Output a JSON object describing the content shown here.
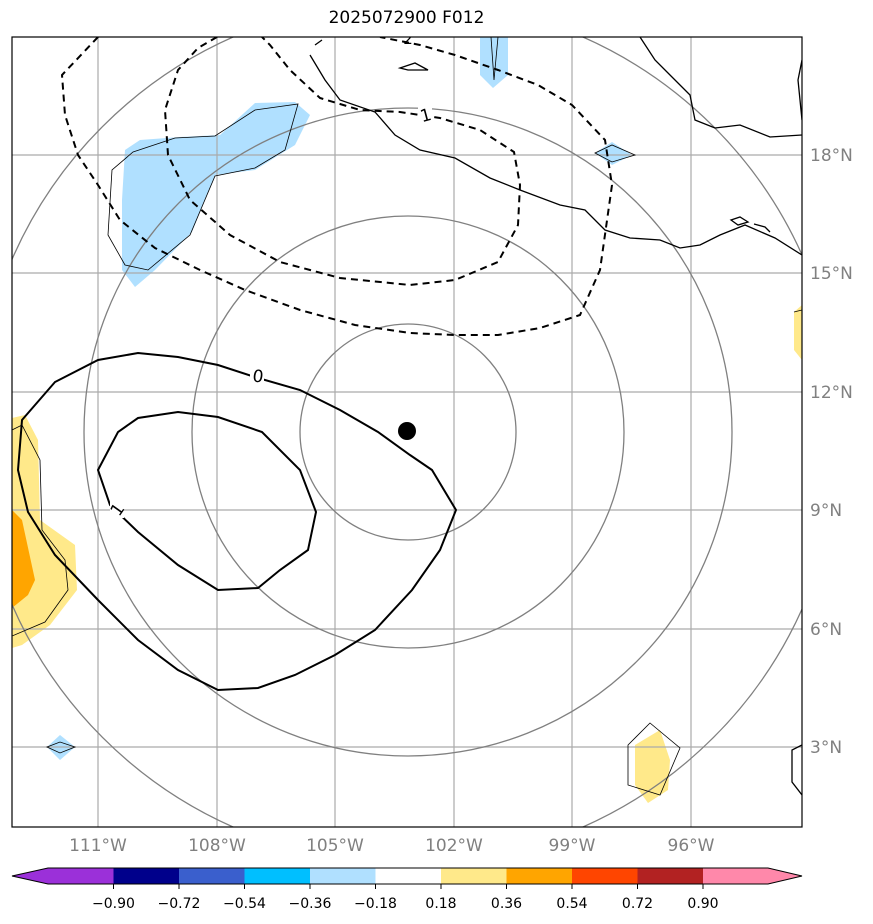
{
  "title": "2025072900 F012",
  "lon_labels": [
    "111°W",
    "108°W",
    "105°W",
    "102°W",
    "99°W",
    "96°W"
  ],
  "lat_labels": [
    "18°N",
    "15°N",
    "12°N",
    "9°N",
    "6°N",
    "3°N"
  ],
  "contour_labels": {
    "zero": "0",
    "pos_one": "1",
    "neg_one": "1",
    "top_left_neg": "2"
  },
  "colorbar": {
    "ticks": [
      "−0.90",
      "−0.72",
      "−0.54",
      "−0.36",
      "−0.18",
      "0.18",
      "0.36",
      "0.54",
      "0.72",
      "0.90"
    ],
    "colors": {
      "under": "#9b30d9",
      "c1": "#00008b",
      "c2": "#3a5fcd",
      "c3": "#00bfff",
      "c4": "#b0e0ff",
      "c5": "#ffffff",
      "c6": "#ffe98a",
      "c7": "#ffa500",
      "c8": "#ff4500",
      "c9": "#b22222",
      "over": "#ff88aa"
    }
  },
  "colors": {
    "grid": "#aaaaaa",
    "range_rings": "#808080",
    "label_text": "#808080",
    "contour": "#000000",
    "center_marker": "#000000"
  }
}
